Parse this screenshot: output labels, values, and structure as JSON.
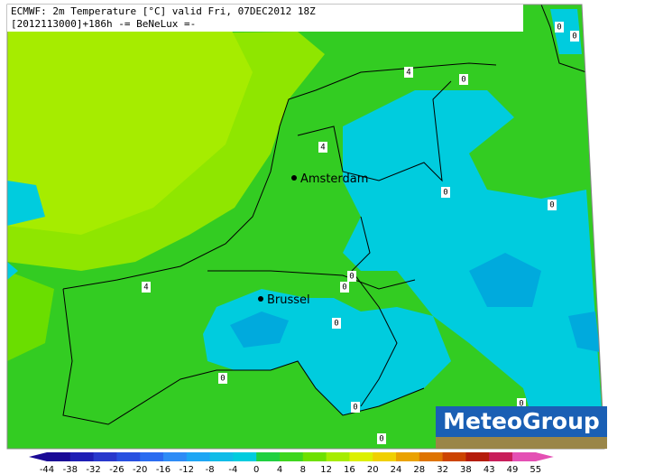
{
  "header": {
    "line1": "ECMWF: 2m Temperature [°C] valid Fri, 07DEC2012 18Z",
    "line2": "[2012113000]+186h -= BeNeLux =-"
  },
  "cities": [
    {
      "label": "Amsterdam"
    },
    {
      "label": "Brussel"
    }
  ],
  "contour_labels": [
    "0",
    "0",
    "4",
    "0",
    "4",
    "0",
    "0",
    "0",
    "0",
    "4",
    "0",
    "0",
    "0",
    "0",
    "0"
  ],
  "colorbar": {
    "ticks": [
      -44,
      -38,
      -32,
      -26,
      -20,
      -16,
      -12,
      -8,
      -4,
      0,
      4,
      8,
      12,
      16,
      20,
      24,
      28,
      32,
      38,
      43,
      49,
      55
    ],
    "colors": [
      "#1a0a96",
      "#1e1eb4",
      "#2838cc",
      "#2850e0",
      "#2a6cf0",
      "#2e8cf6",
      "#1ea6f4",
      "#10bce8",
      "#00ccde",
      "#20d040",
      "#3ed61e",
      "#6ee000",
      "#a6ec00",
      "#dcf000",
      "#f0d000",
      "#eaa200",
      "#de7400",
      "#cc4400",
      "#b41c0a",
      "#c81e5a",
      "#e450b4"
    ]
  },
  "logo": "MeteoGroup"
}
